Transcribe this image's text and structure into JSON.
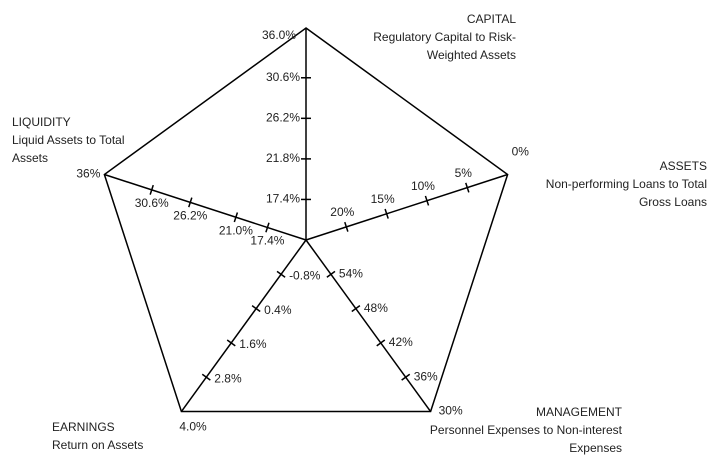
{
  "chart_data": {
    "type": "radar",
    "axes": [
      {
        "name": "CAPITAL",
        "description": [
          "Regulatory Capital to Risk-",
          "Weighted Assets"
        ],
        "lim": [
          13,
          36
        ],
        "ticks": [
          {
            "value": 36,
            "label": "36.0%"
          },
          {
            "value": 30.6,
            "label": "30.6%"
          },
          {
            "value": 26.2,
            "label": "26.2%"
          },
          {
            "value": 21.8,
            "label": "21.8%"
          },
          {
            "value": 17.4,
            "label": "17.4%"
          }
        ]
      },
      {
        "name": "ASSETS",
        "description": [
          "Non-performing Loans to Total",
          "Gross Loans"
        ],
        "lim": [
          25,
          0
        ],
        "ticks": [
          {
            "value": 0,
            "label": "0%"
          },
          {
            "value": 5,
            "label": "5%"
          },
          {
            "value": 10,
            "label": "10%"
          },
          {
            "value": 15,
            "label": "15%"
          },
          {
            "value": 20,
            "label": "20%"
          }
        ]
      },
      {
        "name": "MANAGEMENT",
        "description": [
          "Personnel Expenses to Non-interest",
          "Expenses"
        ],
        "lim": [
          60,
          30
        ],
        "ticks": [
          {
            "value": 30,
            "label": "30%"
          },
          {
            "value": 36,
            "label": "36%"
          },
          {
            "value": 42,
            "label": "42%"
          },
          {
            "value": 48,
            "label": "48%"
          },
          {
            "value": 54,
            "label": "54%"
          }
        ]
      },
      {
        "name": "EARNINGS",
        "description": [
          "Return on Assets"
        ],
        "lim": [
          -2,
          4
        ],
        "ticks": [
          {
            "value": 4,
            "label": "4.0%"
          },
          {
            "value": 2.8,
            "label": "2.8%"
          },
          {
            "value": 1.6,
            "label": "1.6%"
          },
          {
            "value": 0.4,
            "label": "0.4%"
          },
          {
            "value": -0.8,
            "label": "-0.8%"
          }
        ]
      },
      {
        "name": "LIQUIDITY",
        "description": [
          "Liquid Assets to Total",
          "Assets"
        ],
        "lim": [
          13,
          36
        ],
        "ticks": [
          {
            "value": 36,
            "label": "36%"
          },
          {
            "value": 30.6,
            "label": "30.6%"
          },
          {
            "value": 26.2,
            "label": "26.2%"
          },
          {
            "value": 21,
            "label": "21.0%"
          },
          {
            "value": 17.4,
            "label": "17.4%"
          }
        ]
      }
    ]
  }
}
